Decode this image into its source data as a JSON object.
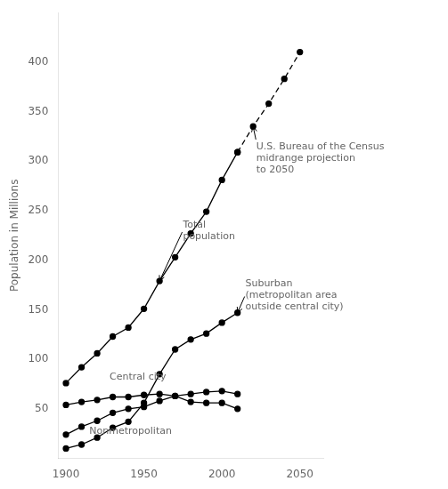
{
  "chart_data": {
    "type": "line",
    "ylabel": "Population in Millions",
    "xlim": [
      1895,
      2065
    ],
    "ylim": [
      0,
      450
    ],
    "xticks": [
      1900,
      1950,
      2000,
      2050
    ],
    "yticks": [
      50,
      100,
      150,
      200,
      250,
      300,
      350,
      400
    ],
    "grid": false,
    "series": [
      {
        "x": [
          1900,
          1910,
          1920,
          1930,
          1940,
          1950,
          1960,
          1970,
          1980,
          1990,
          2000,
          2010
        ],
        "values": [
          76,
          92,
          106,
          123,
          132,
          151,
          179,
          203,
          227,
          249,
          281,
          309
        ],
        "color": "#000000",
        "marker": "circle",
        "line_style": "solid"
      },
      {
        "x": [
          2010,
          2020,
          2030,
          2040,
          2050
        ],
        "values": [
          309,
          335,
          358,
          383,
          410
        ],
        "color": "#000000",
        "marker": "circle",
        "line_style": "dashed"
      },
      {
        "x": [
          1900,
          1910,
          1920,
          1930,
          1940,
          1950,
          1960,
          1970,
          1980,
          1990,
          2000,
          2010
        ],
        "values": [
          10,
          14,
          21,
          31,
          37,
          56,
          85,
          110,
          120,
          126,
          137,
          147
        ],
        "color": "#000000",
        "marker": "circle",
        "line_style": "solid"
      },
      {
        "x": [
          1900,
          1910,
          1920,
          1930,
          1940,
          1950,
          1960,
          1970,
          1980,
          1990,
          2000,
          2010
        ],
        "values": [
          24,
          32,
          38,
          46,
          50,
          52,
          58,
          63,
          65,
          67,
          68,
          65
        ],
        "color": "#000000",
        "marker": "circle",
        "line_style": "solid"
      },
      {
        "x": [
          1900,
          1910,
          1920,
          1930,
          1940,
          1950,
          1960,
          1970,
          1980,
          1990,
          2000,
          2010
        ],
        "values": [
          54,
          57,
          59,
          62,
          62,
          64,
          65,
          63,
          57,
          56,
          56,
          50
        ],
        "color": "#000000",
        "marker": "circle",
        "line_style": "solid"
      }
    ],
    "annotations": [
      {
        "text": "Total\npopulation",
        "x": 1975,
        "y": 230,
        "arrow": [
          1960,
          179
        ]
      },
      {
        "text": "Suburban\n(metropolitan area\noutside central city)",
        "x": 2015,
        "y": 165,
        "arrow": [
          2010,
          147
        ]
      },
      {
        "text": "Central city",
        "x": 1928,
        "y": 82
      },
      {
        "text": "Nonmetropolitan",
        "x": 1915,
        "y": 27
      },
      {
        "text": "U.S. Bureau of the Census\nmidrange projection\nto 2050",
        "x": 2022,
        "y": 320,
        "arrow": [
          2020,
          335
        ]
      }
    ]
  }
}
